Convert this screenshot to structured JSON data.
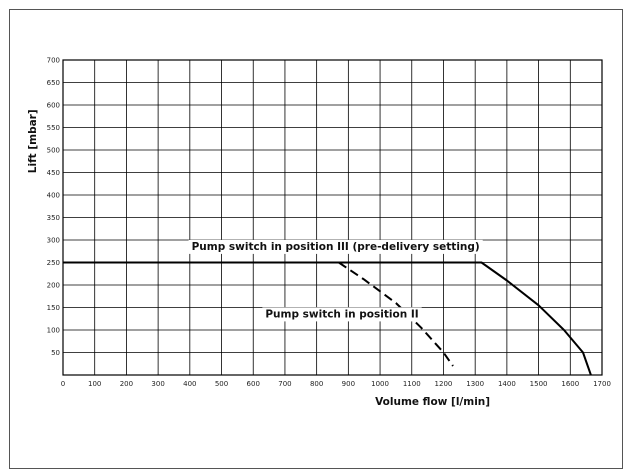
{
  "chart_data": {
    "type": "line",
    "title": "",
    "xlabel": "Volume flow [l/min]",
    "ylabel": "Lift [mbar]",
    "xlim": [
      0,
      1700
    ],
    "ylim": [
      0,
      700
    ],
    "x_ticks": [
      0,
      100,
      200,
      300,
      400,
      500,
      600,
      700,
      800,
      900,
      1000,
      1100,
      1200,
      1300,
      1400,
      1500,
      1600,
      1700
    ],
    "y_ticks": [
      50,
      100,
      150,
      200,
      250,
      300,
      350,
      400,
      450,
      500,
      550,
      600,
      650,
      700
    ],
    "grid": true,
    "series": [
      {
        "name": "Pump switch in position III (pre-delivery setting)",
        "style": "solid",
        "color": "#000000",
        "points": [
          [
            0,
            250
          ],
          [
            1320,
            250
          ],
          [
            1400,
            210
          ],
          [
            1500,
            155
          ],
          [
            1580,
            100
          ],
          [
            1640,
            50
          ],
          [
            1665,
            0
          ]
        ]
      },
      {
        "name": "Pump switch in position II",
        "style": "dashed",
        "color": "#000000",
        "points": [
          [
            870,
            250
          ],
          [
            950,
            212
          ],
          [
            1050,
            160
          ],
          [
            1130,
            105
          ],
          [
            1200,
            50
          ],
          [
            1230,
            20
          ]
        ]
      }
    ],
    "annotations": [
      {
        "text": "Pump switch in position III (pre-delivery setting)",
        "x": 860,
        "y": 278
      },
      {
        "text": "Pump switch in position II",
        "x": 880,
        "y": 128
      }
    ]
  }
}
